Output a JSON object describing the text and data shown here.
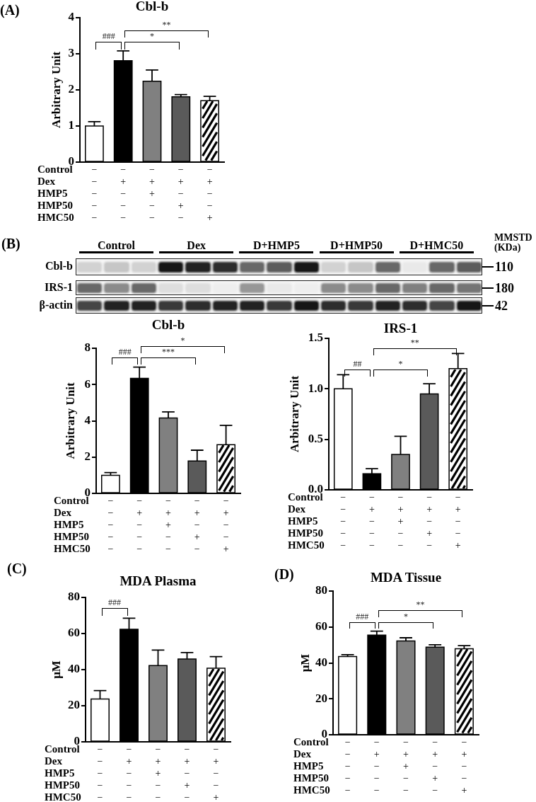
{
  "chart_data": [
    {
      "type": "bar",
      "title": "Cbl-b",
      "ylabel": "Arbitrary Unit",
      "xlabel": "Control\nDex\nHMP5\nHMP50\nHMC50",
      "categories": [
        "−\n−\n−\n−\n−",
        "−\n+\n−\n−\n−",
        "−\n+\n+\n−\n−",
        "−\n+\n−\n+\n−",
        "−\n+\n−\n−\n+"
      ],
      "values": [
        1.0,
        2.81,
        2.24,
        1.81,
        1.7
      ],
      "errors": [
        0.12,
        0.27,
        0.31,
        0.06,
        0.12
      ],
      "colors": [
        "#ffffff",
        "#000000",
        "#808080",
        "#5a5a5a",
        "#ffffff"
      ],
      "ylim": [
        0,
        4
      ],
      "yticks": [
        0,
        1,
        2,
        3,
        4
      ],
      "annotations": [
        "(A)",
        "###",
        "*",
        "**"
      ]
    },
    {
      "type": "other",
      "annotations": [
        "(B)"
      ],
      "categories": [
        "Control",
        "Dex",
        "D+HMP5",
        "D+HMP50",
        "D+HMC50"
      ],
      "y_categories": [
        "Cbl-b",
        "IRS-1",
        "β-actin"
      ],
      "y2_categories": [
        "110",
        "180",
        "42"
      ],
      "y2label": "MMSTD (KDa)"
    },
    {
      "type": "bar",
      "title": "Cbl-b",
      "ylabel": "Arbitrary Unit",
      "xlabel": "Control\nDex\nHMP5\nHMP50\nHMC50",
      "categories": [
        "−\n−\n−\n−\n−",
        "−\n+\n−\n−\n−",
        "−\n+\n+\n−\n−",
        "−\n+\n−\n+\n−",
        "−\n+\n−\n−\n+"
      ],
      "values": [
        1.0,
        6.34,
        4.16,
        1.79,
        2.68
      ],
      "errors": [
        0.15,
        0.62,
        0.33,
        0.59,
        1.07
      ],
      "colors": [
        "#ffffff",
        "#000000",
        "#808080",
        "#5a5a5a",
        "#ffffff"
      ],
      "ylim": [
        0,
        8
      ],
      "yticks": [
        0,
        2,
        4,
        6,
        8
      ],
      "annotations": [
        "###",
        "***",
        "*"
      ]
    },
    {
      "type": "bar",
      "title": "IRS-1",
      "ylabel": "Arbitrary Unit",
      "xlabel": "Control\nDex\nHMP5\nHMP50\nHMC50",
      "categories": [
        "−\n−\n−\n−\n−",
        "−\n+\n−\n−\n−",
        "−\n+\n+\n−\n−",
        "−\n+\n−\n+\n−",
        "−\n+\n−\n−\n+"
      ],
      "values": [
        1.0,
        0.16,
        0.35,
        0.95,
        1.2
      ],
      "errors": [
        0.14,
        0.05,
        0.18,
        0.1,
        0.15
      ],
      "colors": [
        "#ffffff",
        "#000000",
        "#808080",
        "#5a5a5a",
        "#ffffff"
      ],
      "ylim": [
        0,
        1.5
      ],
      "yticks": [
        {
          "value": 0,
          "label": "0.0"
        },
        {
          "value": 0.5,
          "label": "0.5"
        },
        {
          "value": 1,
          "label": "1.0"
        },
        {
          "value": 1.5,
          "label": "1.5"
        }
      ],
      "annotations": [
        "##",
        "*",
        "**"
      ]
    },
    {
      "type": "bar",
      "title": "MDA Plasma",
      "ylabel": "μM",
      "xlabel": "Control\nDex\nHMP5\nHMP50\nHMC50",
      "categories": [
        "−\n−\n−\n−\n−",
        "−\n+\n−\n−\n−",
        "−\n+\n+\n−\n−",
        "−\n+\n−\n+\n−",
        "−\n+\n−\n−\n+"
      ],
      "values": [
        23.7,
        62.4,
        42.3,
        45.9,
        40.8
      ],
      "errors": [
        4.7,
        6.1,
        8.5,
        3.6,
        6.4
      ],
      "colors": [
        "#ffffff",
        "#000000",
        "#808080",
        "#5a5a5a",
        "#ffffff"
      ],
      "ylim": [
        0,
        80
      ],
      "yticks": [
        0,
        20,
        40,
        60,
        80
      ],
      "annotations": [
        "(C)",
        "###"
      ]
    },
    {
      "type": "bar",
      "title": "MDA Tissue",
      "ylabel": "μM",
      "xlabel": "Control\nDex\nHMP5\nHMP50\nHMC50",
      "categories": [
        "−\n−\n−\n−\n−",
        "−\n+\n−\n−\n−",
        "−\n+\n+\n−\n−",
        "−\n+\n−\n+\n−",
        "−\n+\n−\n−\n+"
      ],
      "values": [
        43.5,
        55.5,
        52.2,
        48.8,
        47.9
      ],
      "errors": [
        1.1,
        2.2,
        1.8,
        1.3,
        1.7
      ],
      "colors": [
        "#ffffff",
        "#000000",
        "#808080",
        "#5a5a5a",
        "#ffffff"
      ],
      "ylim": [
        0,
        80
      ],
      "yticks": [
        0,
        20,
        40,
        60,
        80
      ],
      "annotations": [
        "(D)",
        "###",
        "*",
        "**"
      ]
    }
  ]
}
